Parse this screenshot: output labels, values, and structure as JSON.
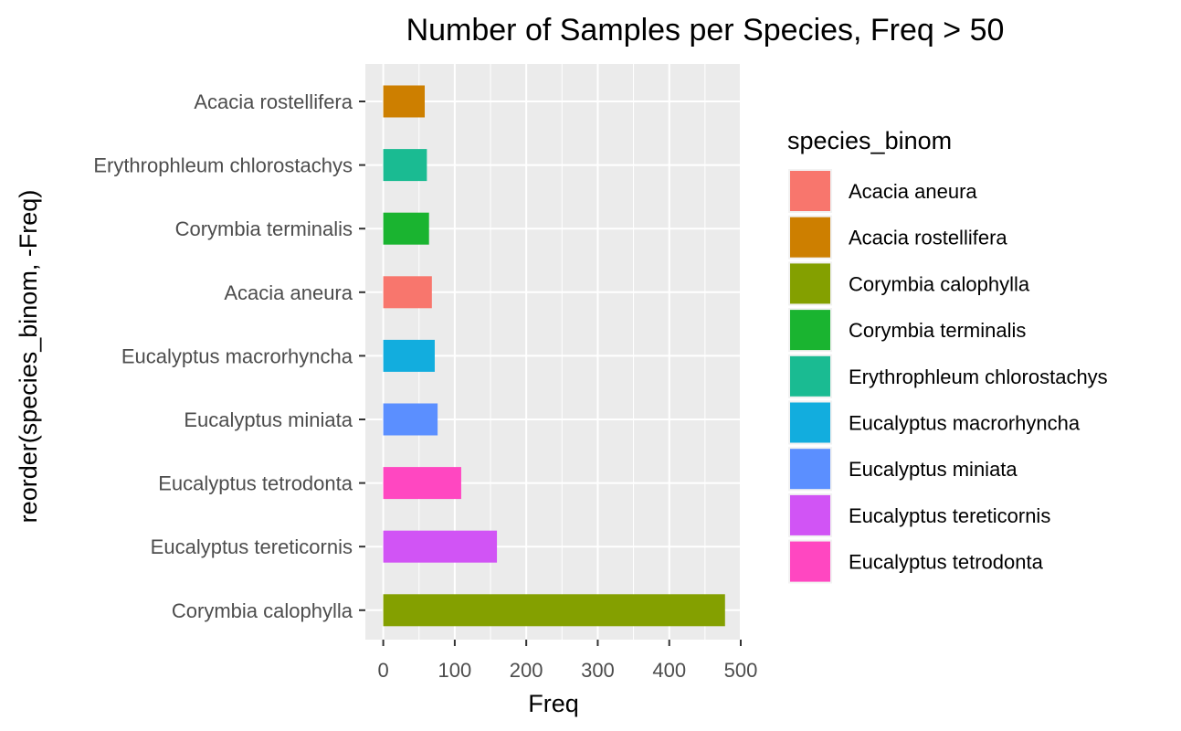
{
  "chart_data": {
    "type": "bar",
    "orientation": "horizontal",
    "title": "Number of Samples per Species, Freq > 50",
    "xlabel": "Freq",
    "ylabel": "reorder(species_binom, -Freq)",
    "xlim": [
      0,
      500
    ],
    "x_ticks": [
      0,
      100,
      200,
      300,
      400,
      500
    ],
    "grid": true,
    "categories": [
      "Acacia rostellifera",
      "Erythrophleum chlorostachys",
      "Corymbia terminalis",
      "Acacia aneura",
      "Eucalyptus macrorhyncha",
      "Eucalyptus miniata",
      "Eucalyptus tetrodonta",
      "Eucalyptus tereticornis",
      "Corymbia calophylla"
    ],
    "values": [
      58,
      61,
      64,
      68,
      72,
      76,
      109,
      159,
      478
    ],
    "colors": [
      "#CD7F00",
      "#1ABB92",
      "#1AB430",
      "#F8766D",
      "#12ADDE",
      "#5B8FFF",
      "#FF47C1",
      "#D154F5",
      "#84A000"
    ],
    "legend": {
      "title": "species_binom",
      "position": "right",
      "items": [
        {
          "label": "Acacia aneura",
          "color": "#F8766D"
        },
        {
          "label": "Acacia rostellifera",
          "color": "#CD7F00"
        },
        {
          "label": "Corymbia calophylla",
          "color": "#84A000"
        },
        {
          "label": "Corymbia terminalis",
          "color": "#1AB430"
        },
        {
          "label": "Erythrophleum chlorostachys",
          "color": "#1ABB92"
        },
        {
          "label": "Eucalyptus macrorhyncha",
          "color": "#12ADDE"
        },
        {
          "label": "Eucalyptus miniata",
          "color": "#5B8FFF"
        },
        {
          "label": "Eucalyptus tereticornis",
          "color": "#D154F5"
        },
        {
          "label": "Eucalyptus tetrodonta",
          "color": "#FF47C1"
        }
      ]
    },
    "panel_background": "#EBEBEB",
    "grid_color": "#FFFFFF"
  }
}
